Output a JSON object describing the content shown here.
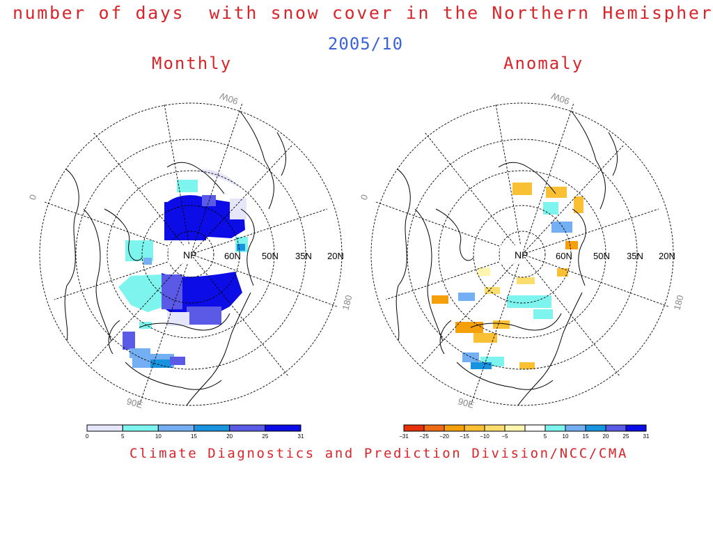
{
  "header": {
    "title": "number of days  with snow cover in the Northern Hemisphere",
    "date": "2005/10",
    "credit": "Climate Diagnostics and Prediction Division/NCC/CMA"
  },
  "panels": [
    {
      "id": "monthly",
      "title": "Monthly",
      "pole_label": "NP",
      "lat_labels": [
        "60N",
        "50N",
        "35N",
        "20N"
      ],
      "lon_labels": [
        "90W",
        "0",
        "180",
        "90E"
      ],
      "colorbar": {
        "ticks": [
          "0",
          "5",
          "10",
          "15",
          "20",
          "25",
          "31"
        ],
        "colors": [
          "#e6e6fb",
          "#7df5ee",
          "#74aff3",
          "#1893e0",
          "#5a5ae6",
          "#0c0ce6"
        ]
      }
    },
    {
      "id": "anomaly",
      "title": "Anomaly",
      "pole_label": "NP",
      "lat_labels": [
        "60N",
        "50N",
        "35N",
        "20N"
      ],
      "lon_labels": [
        "90W",
        "0",
        "180",
        "90E"
      ],
      "colorbar": {
        "ticks": [
          "−31",
          "−25",
          "−20",
          "−15",
          "−10",
          "−5",
          "5",
          "10",
          "15",
          "20",
          "25",
          "31"
        ],
        "colors": [
          "#e6320a",
          "#f06c14",
          "#f5a00a",
          "#fac034",
          "#fbdd6e",
          "#fdf5b0",
          "#ffffff",
          "#7df5ee",
          "#74aff3",
          "#1893e0",
          "#5a5ae6",
          "#0c0ce6"
        ]
      }
    }
  ]
}
